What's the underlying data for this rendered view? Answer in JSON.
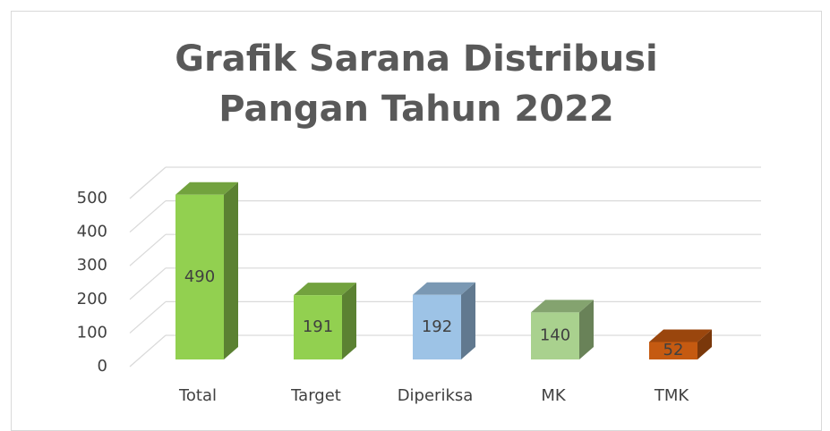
{
  "chart_data": {
    "type": "bar3d",
    "title": "Grafik Sarana Distribusi Pangan Tahun 2022",
    "categories": [
      "Total",
      "Target",
      "Diperiksa",
      "MK",
      "TMK"
    ],
    "values": [
      490,
      191,
      192,
      140,
      52
    ],
    "colors": [
      "#92d050",
      "#92d050",
      "#9dc3e6",
      "#a9d18e",
      "#c55a11"
    ],
    "ylim": [
      0,
      500
    ],
    "yticks": [
      0,
      100,
      200,
      300,
      400,
      500
    ],
    "grid": true
  }
}
